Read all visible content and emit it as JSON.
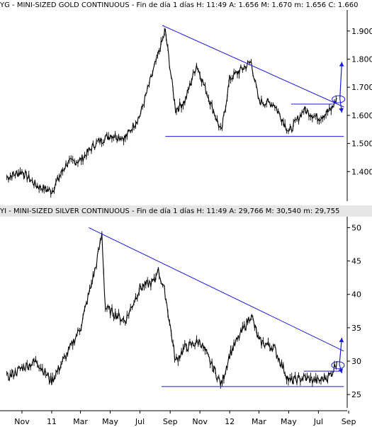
{
  "chart_data": [
    {
      "type": "line",
      "panel": "gold",
      "title": "YG - MINI-SIZED GOLD CONTINUOUS - Fin de día 1 días H: 11:49  A: 1.656  M: 1.670  m: 1.656  C: 1.660",
      "y_tick_labels": [
        "1.900",
        "1.800",
        "1.700",
        "1.600",
        "1.500",
        "1.400"
      ],
      "y_ticks": [
        1900,
        1800,
        1700,
        1600,
        1500,
        1400
      ],
      "ylim": [
        1300,
        1960
      ],
      "grid": false,
      "series": [
        {
          "x": [
            "2010-10",
            "2010-11",
            "2010-12",
            "2011-01",
            "2011-02",
            "2011-03",
            "2011-04",
            "2011-05",
            "2011-06",
            "2011-07",
            "2011-08",
            "2011-09-05",
            "2011-09-26",
            "2011-10",
            "2011-11-08",
            "2011-12-29",
            "2012-01",
            "2012-02-28",
            "2012-03",
            "2012-04",
            "2012-05-16",
            "2012-06",
            "2012-07",
            "2012-08-10",
            "2012-08-22"
          ],
          "values": [
            1380,
            1400,
            1350,
            1330,
            1430,
            1440,
            1500,
            1530,
            1520,
            1600,
            1780,
            1900,
            1620,
            1650,
            1780,
            1540,
            1730,
            1790,
            1650,
            1640,
            1540,
            1620,
            1590,
            1620,
            1660
          ]
        }
      ],
      "lines": [
        {
          "label": "trendline",
          "from": [
            "2011-08-30",
            1920
          ],
          "to": [
            "2012-09-05",
            1630
          ]
        },
        {
          "label": "support",
          "from": [
            "2011-09-05",
            1525
          ],
          "to": [
            "2012-09-05",
            1525
          ]
        },
        {
          "label": "range-top",
          "from": [
            "2012-05-20",
            1640
          ],
          "to": [
            "2012-08-15",
            1640
          ]
        }
      ],
      "arrows": [
        {
          "from": [
            "2012-08-28",
            1660
          ],
          "to": [
            "2012-09-01",
            1790
          ]
        },
        {
          "from": [
            "2012-08-28",
            1660
          ],
          "to": [
            "2012-09-01",
            1610
          ]
        }
      ]
    },
    {
      "type": "line",
      "panel": "silver",
      "title": "YI - MINI-SIZED SILVER CONTINUOUS - Fin de día 1 días H: 11:49  A: 29,766  M: 30,540  m: 29,755",
      "y_tick_labels": [
        "50",
        "45",
        "40",
        "35",
        "30",
        "25"
      ],
      "y_ticks": [
        50,
        45,
        40,
        35,
        30,
        25
      ],
      "ylim": [
        23,
        51
      ],
      "grid": false,
      "x_tick_labels": [
        "Nov",
        "11",
        "Mar",
        "May",
        "Jul",
        "Sep",
        "Nov",
        "12",
        "Mar",
        "May",
        "Jul",
        "Sep"
      ],
      "x_ticks": [
        "2010-11",
        "2011-01",
        "2011-03",
        "2011-05",
        "2011-07",
        "2011-09",
        "2011-11",
        "2012-01",
        "2012-03",
        "2012-05",
        "2012-07",
        "2012-09"
      ],
      "series": [
        {
          "x": [
            "2010-10",
            "2010-11",
            "2010-12",
            "2011-01",
            "2011-02",
            "2011-03",
            "2011-04",
            "2011-04-28",
            "2011-05-05",
            "2011-06",
            "2011-07",
            "2011-08",
            "2011-08-20",
            "2011-09-05",
            "2011-09-26",
            "2011-10",
            "2011-11",
            "2011-12-29",
            "2012-01",
            "2012-02-28",
            "2012-03",
            "2012-04",
            "2012-05-16",
            "2012-06",
            "2012-07",
            "2012-08-10",
            "2012-08-22"
          ],
          "values": [
            27.5,
            29,
            30,
            27,
            31,
            35,
            44,
            49,
            38,
            36,
            41,
            42,
            44,
            40,
            30,
            32,
            33,
            26.5,
            31,
            37,
            33,
            32,
            27,
            27.5,
            27,
            28,
            30
          ]
        }
      ],
      "lines": [
        {
          "label": "trendline",
          "from": [
            "2011-04-01",
            50
          ],
          "to": [
            "2012-09-05",
            31.5
          ]
        },
        {
          "label": "support",
          "from": [
            "2011-08-28",
            26.2
          ],
          "to": [
            "2012-09-05",
            26.2
          ]
        },
        {
          "label": "range-top",
          "from": [
            "2012-06-15",
            28.5
          ],
          "to": [
            "2012-09-01",
            28.5
          ]
        }
      ],
      "arrows": [
        {
          "from": [
            "2012-08-27",
            29.5
          ],
          "to": [
            "2012-09-01",
            33.5
          ]
        },
        {
          "from": [
            "2012-08-27",
            29.5
          ],
          "to": [
            "2012-09-01",
            28.2
          ]
        }
      ]
    }
  ]
}
